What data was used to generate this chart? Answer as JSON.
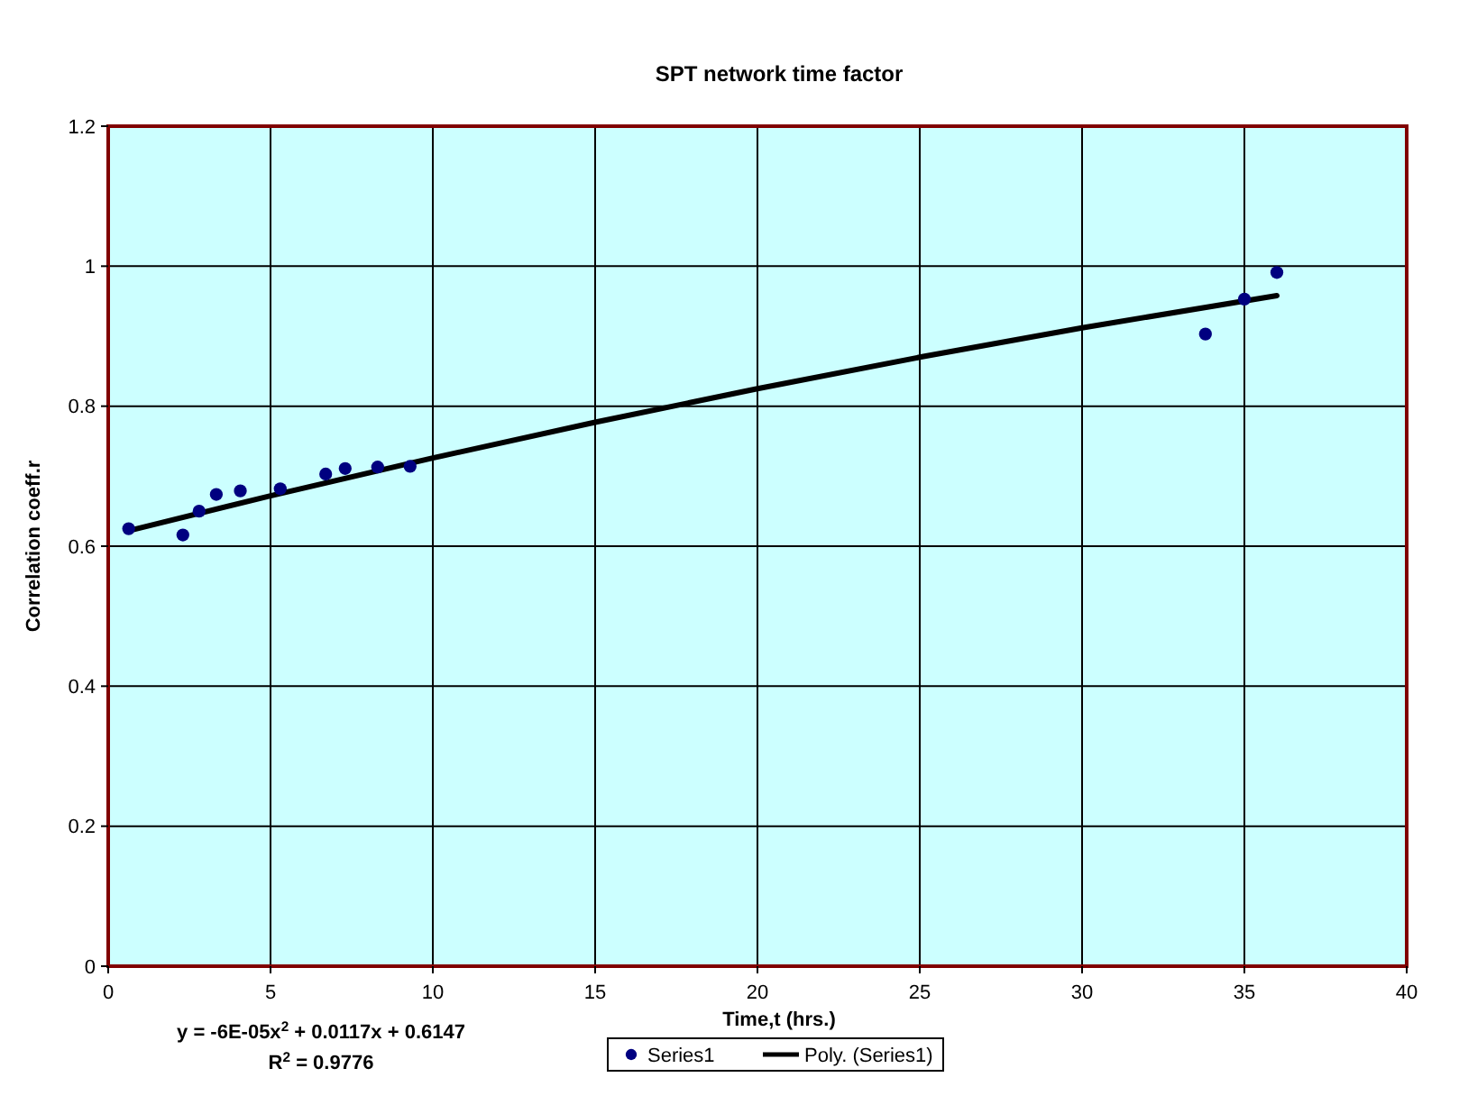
{
  "chart_data": {
    "type": "scatter",
    "title": "SPT network time factor",
    "xlabel": "Time,t (hrs.)",
    "ylabel": "Correlation coeff.r",
    "xlim": [
      0,
      40
    ],
    "xticks": [
      0,
      5,
      10,
      15,
      20,
      25,
      30,
      35,
      40
    ],
    "ylim": [
      0,
      1.2
    ],
    "yticks": [
      0,
      0.2,
      0.4,
      0.6,
      0.8,
      1,
      1.2
    ],
    "grid": true,
    "legend": "bottom",
    "series": [
      {
        "name": "Series1",
        "color": "#000080",
        "marker": "circle",
        "x": [
          0.63,
          2.3,
          2.8,
          3.33,
          4.07,
          5.3,
          6.7,
          7.3,
          8.3,
          9.3,
          33.8,
          35,
          36
        ],
        "values": [
          0.625,
          0.616,
          0.65,
          0.674,
          0.679,
          0.682,
          0.703,
          0.711,
          0.713,
          0.714,
          0.903,
          0.953,
          0.991
        ]
      },
      {
        "name": "Poly. (Series1)",
        "type": "line",
        "color": "#000000",
        "marker": "none",
        "line_style": "solid",
        "x": [
          0.63,
          5,
          10,
          15,
          20,
          25,
          30,
          36
        ],
        "values": [
          0.622,
          0.672,
          0.726,
          0.777,
          0.825,
          0.87,
          0.912,
          0.958
        ]
      }
    ],
    "annotations": [
      "y = -6E-05x$^{2}$ + 0.0117x + 0.6147",
      "R$^{2}$ = 0.9776"
    ]
  }
}
